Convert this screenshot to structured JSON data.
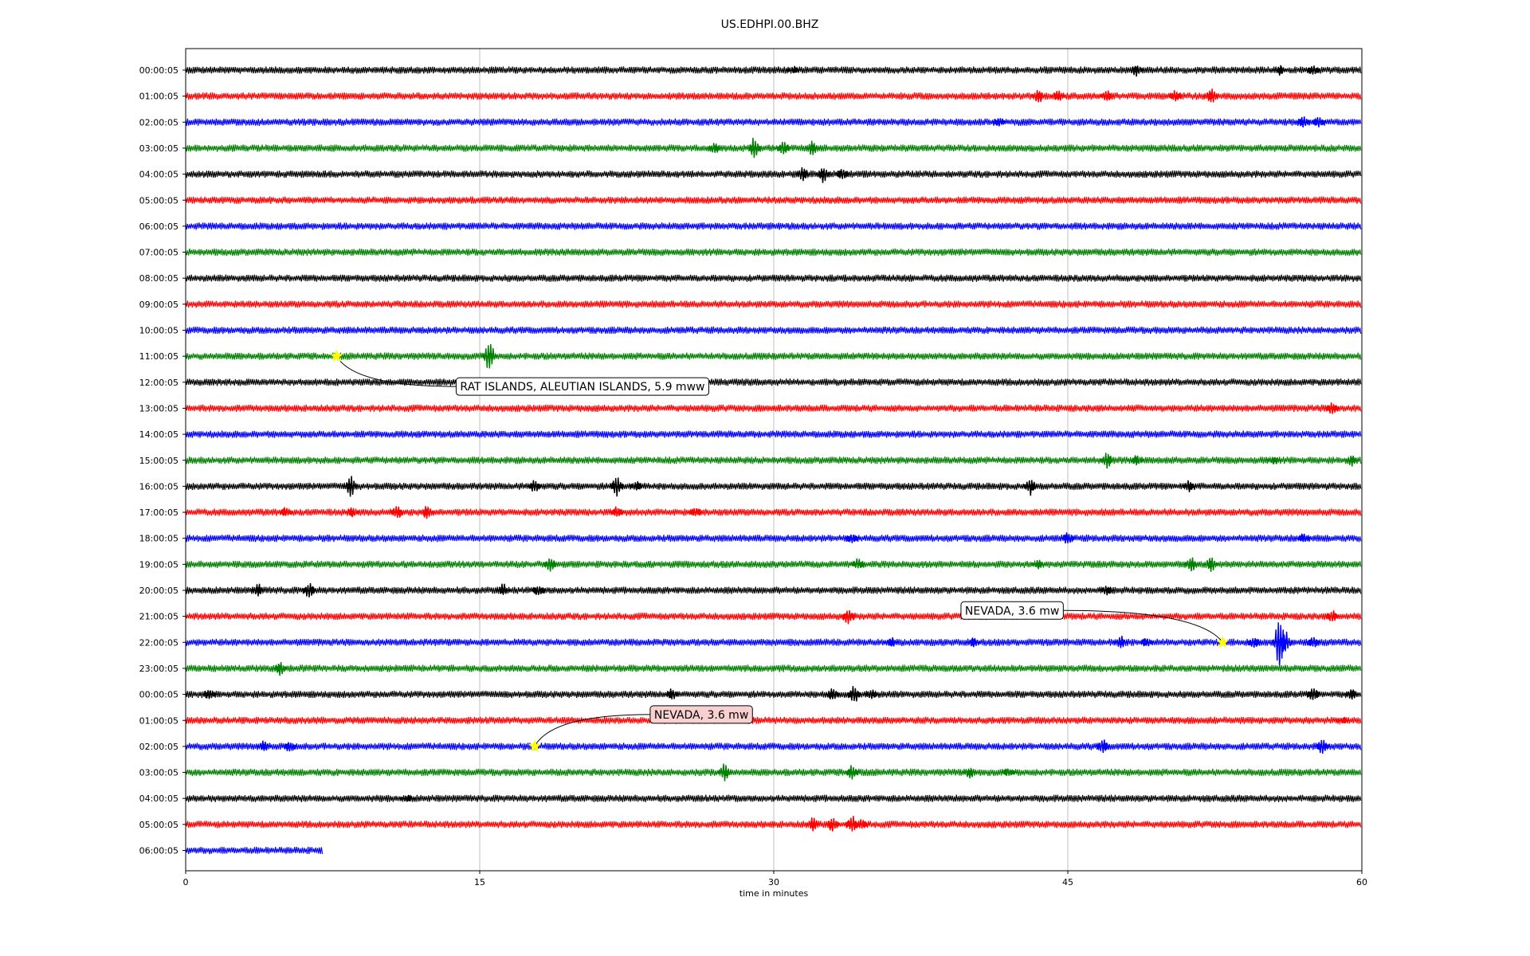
{
  "chart_data": {
    "type": "line",
    "title": "US.EDHPI.00.BHZ",
    "xlabel": "time in minutes",
    "ylabel": "",
    "xlim": [
      0,
      60
    ],
    "x_ticks": [
      0,
      15,
      30,
      45,
      60
    ],
    "grid": "vertical",
    "trace_colors": [
      "#000000",
      "#ff0000",
      "#0000ff",
      "#008000"
    ],
    "rows": [
      {
        "label": "00:00:05",
        "end_minute": 60,
        "bursts": [
          [
            31,
            6
          ],
          [
            48.5,
            9
          ],
          [
            55.8,
            7
          ],
          [
            57.5,
            8
          ]
        ]
      },
      {
        "label": "01:00:05",
        "end_minute": 60,
        "bursts": [
          [
            43.5,
            10
          ],
          [
            44.5,
            8
          ],
          [
            47,
            9
          ],
          [
            50.5,
            8
          ],
          [
            52.3,
            11
          ]
        ]
      },
      {
        "label": "02:00:05",
        "end_minute": 60,
        "bursts": [
          [
            41.5,
            6
          ],
          [
            57,
            10
          ],
          [
            57.8,
            8
          ]
        ]
      },
      {
        "label": "03:00:05",
        "end_minute": 60,
        "bursts": [
          [
            27,
            8
          ],
          [
            29,
            14
          ],
          [
            30.5,
            9
          ],
          [
            32,
            11
          ]
        ]
      },
      {
        "label": "04:00:05",
        "end_minute": 60,
        "bursts": [
          [
            31.5,
            10
          ],
          [
            32.5,
            12
          ],
          [
            33.5,
            8
          ]
        ]
      },
      {
        "label": "05:00:05",
        "end_minute": 60,
        "bursts": []
      },
      {
        "label": "06:00:05",
        "end_minute": 60,
        "bursts": []
      },
      {
        "label": "07:00:05",
        "end_minute": 60,
        "bursts": []
      },
      {
        "label": "08:00:05",
        "end_minute": 60,
        "bursts": []
      },
      {
        "label": "09:00:05",
        "end_minute": 60,
        "bursts": []
      },
      {
        "label": "10:00:05",
        "end_minute": 60,
        "bursts": []
      },
      {
        "label": "11:00:05",
        "end_minute": 60,
        "bursts": [
          [
            15.5,
            20
          ]
        ]
      },
      {
        "label": "12:00:05",
        "end_minute": 60,
        "bursts": []
      },
      {
        "label": "13:00:05",
        "end_minute": 60,
        "bursts": [
          [
            58.5,
            9
          ]
        ]
      },
      {
        "label": "14:00:05",
        "end_minute": 60,
        "bursts": []
      },
      {
        "label": "15:00:05",
        "end_minute": 60,
        "bursts": [
          [
            47,
            11
          ],
          [
            48.5,
            8
          ],
          [
            55.5,
            6
          ],
          [
            59.5,
            8
          ]
        ]
      },
      {
        "label": "16:00:05",
        "end_minute": 60,
        "bursts": [
          [
            8.4,
            14
          ],
          [
            17.8,
            9
          ],
          [
            22,
            14
          ],
          [
            23,
            7
          ],
          [
            43.1,
            12
          ],
          [
            51.2,
            8
          ]
        ]
      },
      {
        "label": "17:00:05",
        "end_minute": 60,
        "bursts": [
          [
            5.1,
            7
          ],
          [
            8.5,
            8
          ],
          [
            10.8,
            10
          ],
          [
            12.3,
            9
          ],
          [
            22,
            8
          ],
          [
            26,
            6
          ]
        ]
      },
      {
        "label": "18:00:05",
        "end_minute": 60,
        "bursts": [
          [
            34,
            8
          ],
          [
            45,
            9
          ],
          [
            57,
            7
          ]
        ]
      },
      {
        "label": "19:00:05",
        "end_minute": 60,
        "bursts": [
          [
            18.6,
            11
          ],
          [
            34.3,
            8
          ],
          [
            43.5,
            7
          ],
          [
            51.3,
            11
          ],
          [
            52.3,
            10
          ]
        ]
      },
      {
        "label": "20:00:05",
        "end_minute": 60,
        "bursts": [
          [
            3.7,
            10
          ],
          [
            6.3,
            11
          ],
          [
            16.2,
            9
          ],
          [
            18,
            8
          ],
          [
            47,
            7
          ]
        ]
      },
      {
        "label": "21:00:05",
        "end_minute": 60,
        "bursts": [
          [
            33.8,
            11
          ],
          [
            58.5,
            9
          ]
        ]
      },
      {
        "label": "22:00:05",
        "end_minute": 60,
        "bursts": [
          [
            36,
            7
          ],
          [
            40.2,
            8
          ],
          [
            47.7,
            9
          ],
          [
            49,
            7
          ],
          [
            54.5,
            8
          ],
          [
            55.8,
            32
          ],
          [
            56.1,
            16
          ],
          [
            57.5,
            8
          ]
        ]
      },
      {
        "label": "23:00:05",
        "end_minute": 60,
        "bursts": [
          [
            4.8,
            10
          ]
        ]
      },
      {
        "label": "00:00:05",
        "end_minute": 60,
        "bursts": [
          [
            1.2,
            7
          ],
          [
            24.8,
            9
          ],
          [
            33,
            9
          ],
          [
            34.1,
            12
          ],
          [
            35,
            8
          ],
          [
            57.5,
            11
          ],
          [
            59.5,
            8
          ]
        ]
      },
      {
        "label": "01:00:05",
        "end_minute": 60,
        "bursts": [
          [
            59,
            5
          ]
        ]
      },
      {
        "label": "02:00:05",
        "end_minute": 60,
        "bursts": [
          [
            4,
            8
          ],
          [
            5.3,
            8
          ],
          [
            46.8,
            10
          ],
          [
            58,
            11
          ]
        ]
      },
      {
        "label": "03:00:05",
        "end_minute": 60,
        "bursts": [
          [
            27.5,
            12
          ],
          [
            34,
            10
          ],
          [
            40,
            8
          ],
          [
            42,
            6
          ]
        ]
      },
      {
        "label": "04:00:05",
        "end_minute": 60,
        "bursts": [
          [
            11.3,
            5
          ]
        ]
      },
      {
        "label": "05:00:05",
        "end_minute": 60,
        "bursts": [
          [
            32,
            10
          ],
          [
            33,
            11
          ],
          [
            34,
            12
          ],
          [
            34.5,
            8
          ]
        ]
      },
      {
        "label": "06:00:05",
        "end_minute": 7,
        "bursts": []
      }
    ],
    "events": [
      {
        "label": "RAT ISLANDS, ALEUTIAN ISLANDS, 5.9 mww",
        "row": 11,
        "minute": 7.7,
        "box_color": "#ffffff"
      },
      {
        "label": "NEVADA, 3.6 mw",
        "row": 22,
        "minute": 52.9,
        "box_color": "#ffffff"
      },
      {
        "label": "NEVADA, 3.6 mw",
        "row": 26,
        "minute": 17.8,
        "box_color": "#f8d0d0"
      }
    ],
    "marker_color": "#ffff00"
  }
}
